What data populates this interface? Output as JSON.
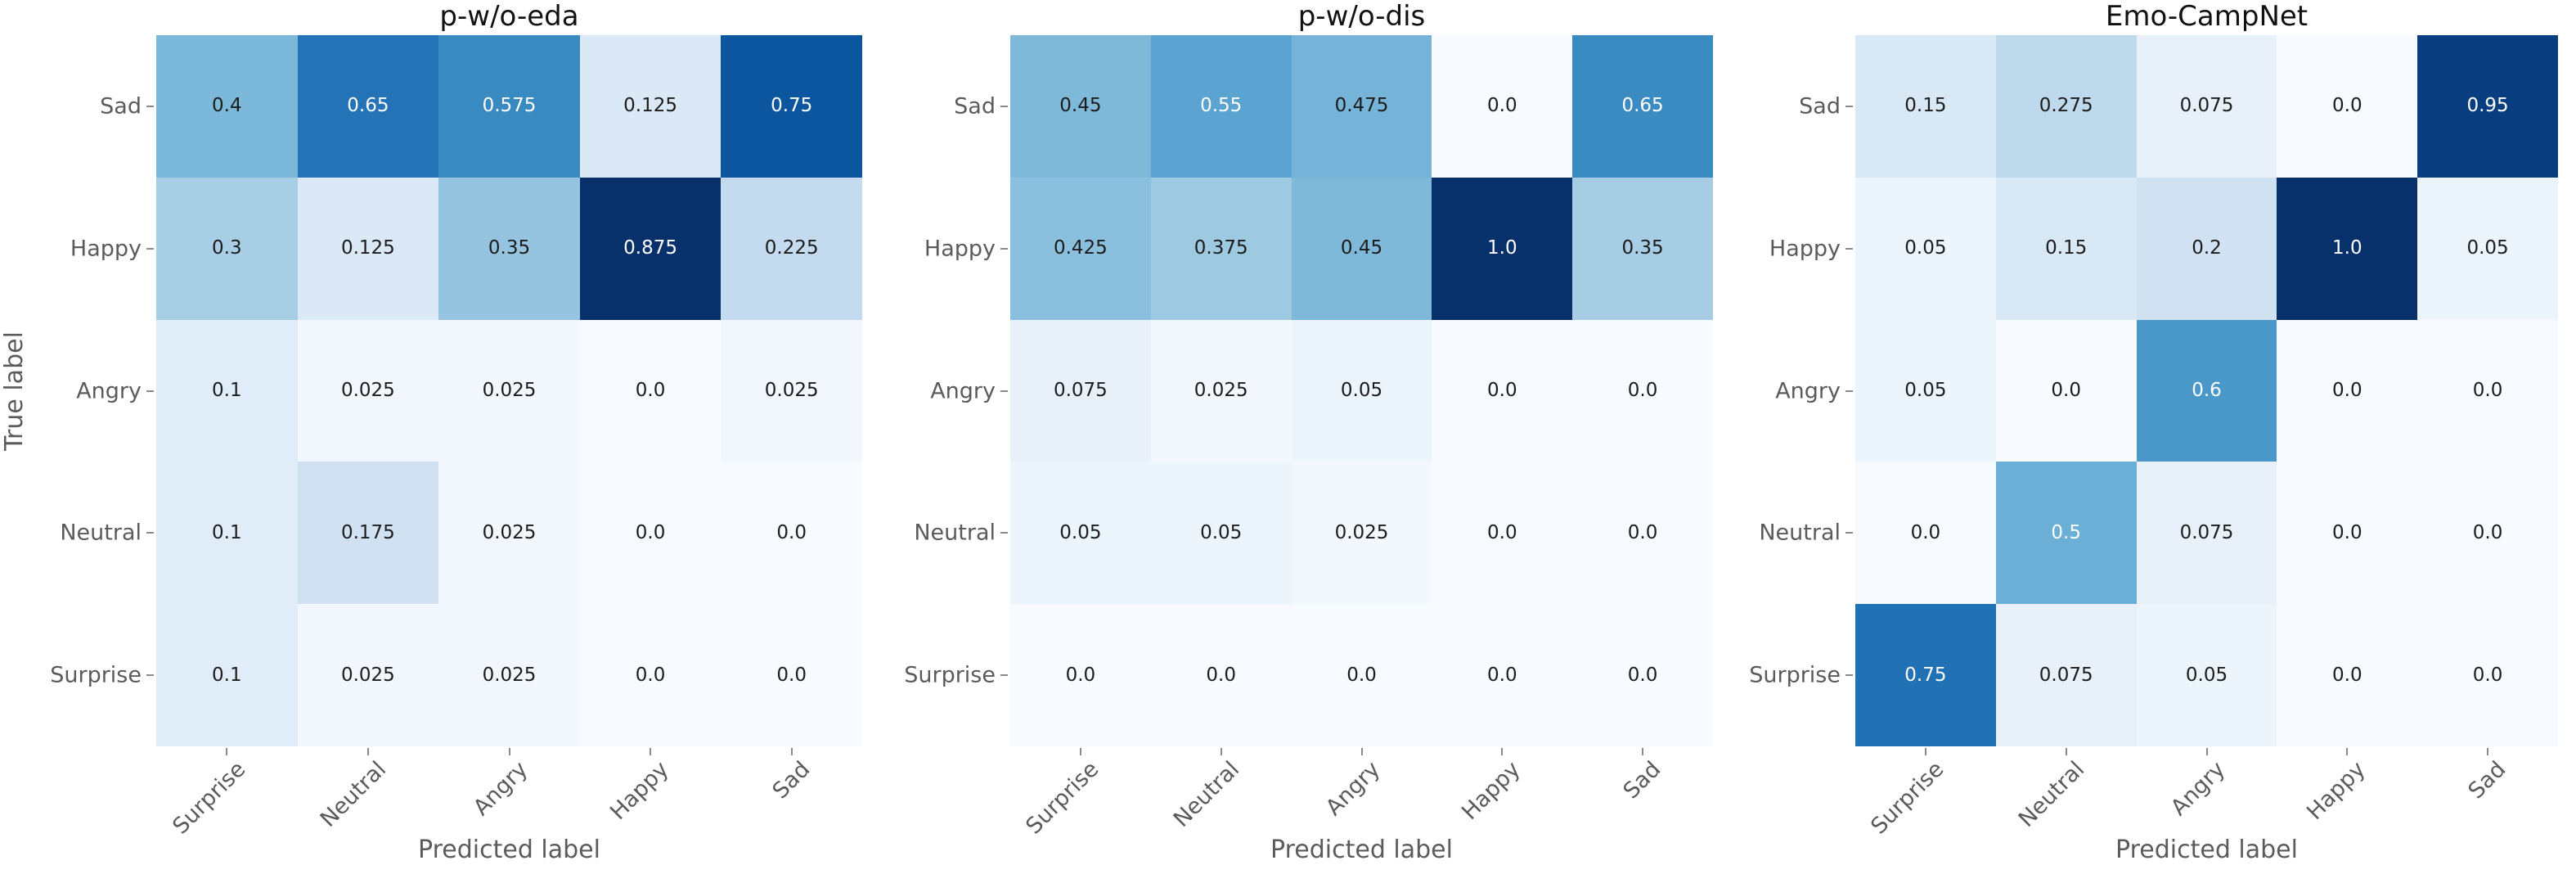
{
  "colors": {
    "background": "#ffffff",
    "title_text": "#111111",
    "tick_text": "#5b5b5b",
    "axis_label_text": "#5b5b5b",
    "tick_mark": "#8a8a8a",
    "annot_dark": "#1c1c1c",
    "annot_light": "#ffffff",
    "colormap_name": "Blues",
    "colormap_anchors": [
      "#f7fbff",
      "#deebf7",
      "#c6dbef",
      "#9ecae1",
      "#6baed6",
      "#4292c6",
      "#2171b5",
      "#08519c",
      "#08306b"
    ],
    "luminance_threshold": 0.408
  },
  "chart_data": [
    {
      "type": "heatmap",
      "title": "p-w/o-eda",
      "xlabel": "Predicted label",
      "ylabel": "True label",
      "x_ticklabels": [
        "Surprise",
        "Neutral",
        "Angry",
        "Happy",
        "Sad"
      ],
      "y_ticklabels": [
        "Sad",
        "Happy",
        "Angry",
        "Neutral",
        "Surprise"
      ],
      "colormap": "Blues",
      "vmin": 0,
      "vmax": 0.875,
      "grid": false,
      "values": [
        [
          0.4,
          0.65,
          0.575,
          0.125,
          0.75
        ],
        [
          0.3,
          0.125,
          0.35,
          0.875,
          0.225
        ],
        [
          0.1,
          0.025,
          0.025,
          0.0,
          0.025
        ],
        [
          0.1,
          0.175,
          0.025,
          0.0,
          0.0
        ],
        [
          0.1,
          0.025,
          0.025,
          0.0,
          0.0
        ]
      ]
    },
    {
      "type": "heatmap",
      "title": "p-w/o-dis",
      "xlabel": "Predicted label",
      "x_ticklabels": [
        "Surprise",
        "Neutral",
        "Angry",
        "Happy",
        "Sad"
      ],
      "y_ticklabels": [
        "Sad",
        "Happy",
        "Angry",
        "Neutral",
        "Surprise"
      ],
      "colormap": "Blues",
      "vmin": 0,
      "vmax": 1.0,
      "grid": false,
      "values": [
        [
          0.45,
          0.55,
          0.475,
          0.0,
          0.65
        ],
        [
          0.425,
          0.375,
          0.45,
          1.0,
          0.35
        ],
        [
          0.075,
          0.025,
          0.05,
          0.0,
          0.0
        ],
        [
          0.05,
          0.05,
          0.025,
          0.0,
          0.0
        ],
        [
          0.0,
          0.0,
          0.0,
          0.0,
          0.0
        ]
      ]
    },
    {
      "type": "heatmap",
      "title": "Emo-CampNet",
      "xlabel": "Predicted label",
      "x_ticklabels": [
        "Surprise",
        "Neutral",
        "Angry",
        "Happy",
        "Sad"
      ],
      "y_ticklabels": [
        "Sad",
        "Happy",
        "Angry",
        "Neutral",
        "Surprise"
      ],
      "colormap": "Blues",
      "vmin": 0,
      "vmax": 1.0,
      "grid": false,
      "values": [
        [
          0.15,
          0.275,
          0.075,
          0.0,
          0.95
        ],
        [
          0.05,
          0.15,
          0.2,
          1.0,
          0.05
        ],
        [
          0.05,
          0.0,
          0.6,
          0.0,
          0.0
        ],
        [
          0.0,
          0.5,
          0.075,
          0.0,
          0.0
        ],
        [
          0.75,
          0.075,
          0.05,
          0.0,
          0.0
        ]
      ]
    }
  ]
}
